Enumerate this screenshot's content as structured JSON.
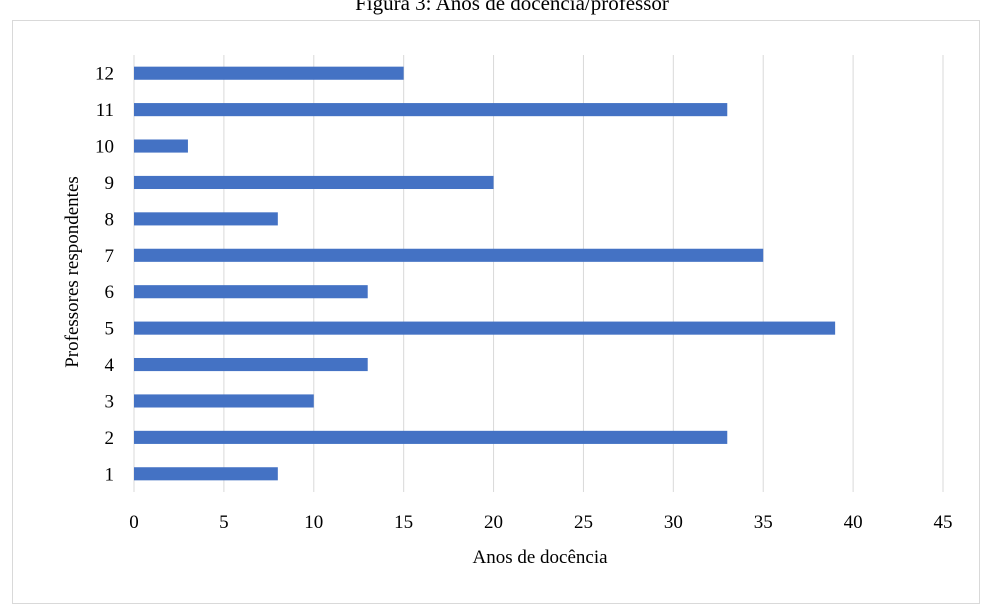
{
  "figure_title": "Figura 3: Anos de docência/professor",
  "chart_data": {
    "type": "bar",
    "orientation": "horizontal",
    "title": "",
    "xlabel": "Anos de docência",
    "ylabel": "Professores respondentes",
    "categories": [
      "1",
      "2",
      "3",
      "4",
      "5",
      "6",
      "7",
      "8",
      "9",
      "10",
      "11",
      "12"
    ],
    "values": [
      8,
      33,
      10,
      13,
      39,
      13,
      35,
      8,
      20,
      3,
      33,
      15
    ],
    "xlim": [
      0,
      45
    ],
    "xticks": [
      0,
      5,
      10,
      15,
      20,
      25,
      30,
      35,
      40,
      45
    ],
    "grid": "vertical",
    "legend": "none",
    "bar_color": "#4472C4",
    "grid_color": "#d9d9d9"
  }
}
